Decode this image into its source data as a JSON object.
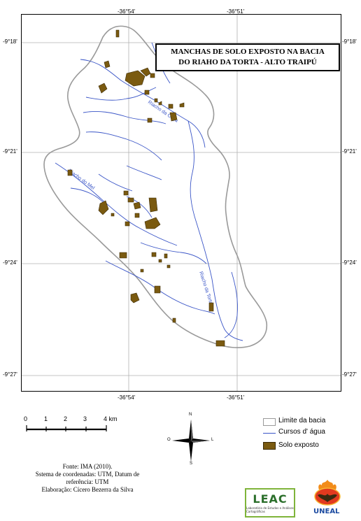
{
  "map": {
    "title_line1": "MANCHAS DE SOLO EXPOSTO NA BACIA",
    "title_line2": "DO RIAHO DA TORTA - ALTO TRAIPÚ",
    "top_coords": [
      "-36°54'",
      "-36°51'"
    ],
    "bottom_coords": [
      "-36°54'",
      "-36°51'"
    ],
    "left_coords": [
      "-9°18'",
      "-9°21'",
      "-9°24'",
      "-9°27'"
    ],
    "right_coords": [
      "-9°18'",
      "-9°21'",
      "-9°24'",
      "-9°27'"
    ],
    "river_labels": [
      "Riacho da Onça",
      "Riacho do Mel",
      "Riacho da Torta"
    ],
    "colors": {
      "basin_outline": "#9a9a9a",
      "river": "#3a55c7",
      "soil_fill": "#7a5a10",
      "soil_stroke": "#3b2a06",
      "grid": "#b0b0b0"
    }
  },
  "scale_bar": {
    "ticks": [
      "0",
      "1",
      "2",
      "3",
      "4 km"
    ]
  },
  "north_arrow": {
    "n": "N",
    "s": "S",
    "e": "L",
    "w": "O"
  },
  "legend": {
    "items": [
      {
        "label": "Limite da bacia",
        "icon": "basin-boundary"
      },
      {
        "label": "Cursos d' água",
        "icon": "watercourse-line"
      },
      {
        "label": "Solo exposto",
        "icon": "exposed-soil-swatch"
      }
    ]
  },
  "credits": {
    "line1": "Fonte: IMA (2010).",
    "line2": "Sstema de coordenadas: UTM, Datum de",
    "line3": "referência: UTM",
    "line4": "Elaboração: Cícero Bezerra da Silva"
  },
  "logos": {
    "leac": "LEAC",
    "leac_sub": "Laboratório de Estudos e Análises Cartográficas",
    "uneal": "UNEAL"
  }
}
